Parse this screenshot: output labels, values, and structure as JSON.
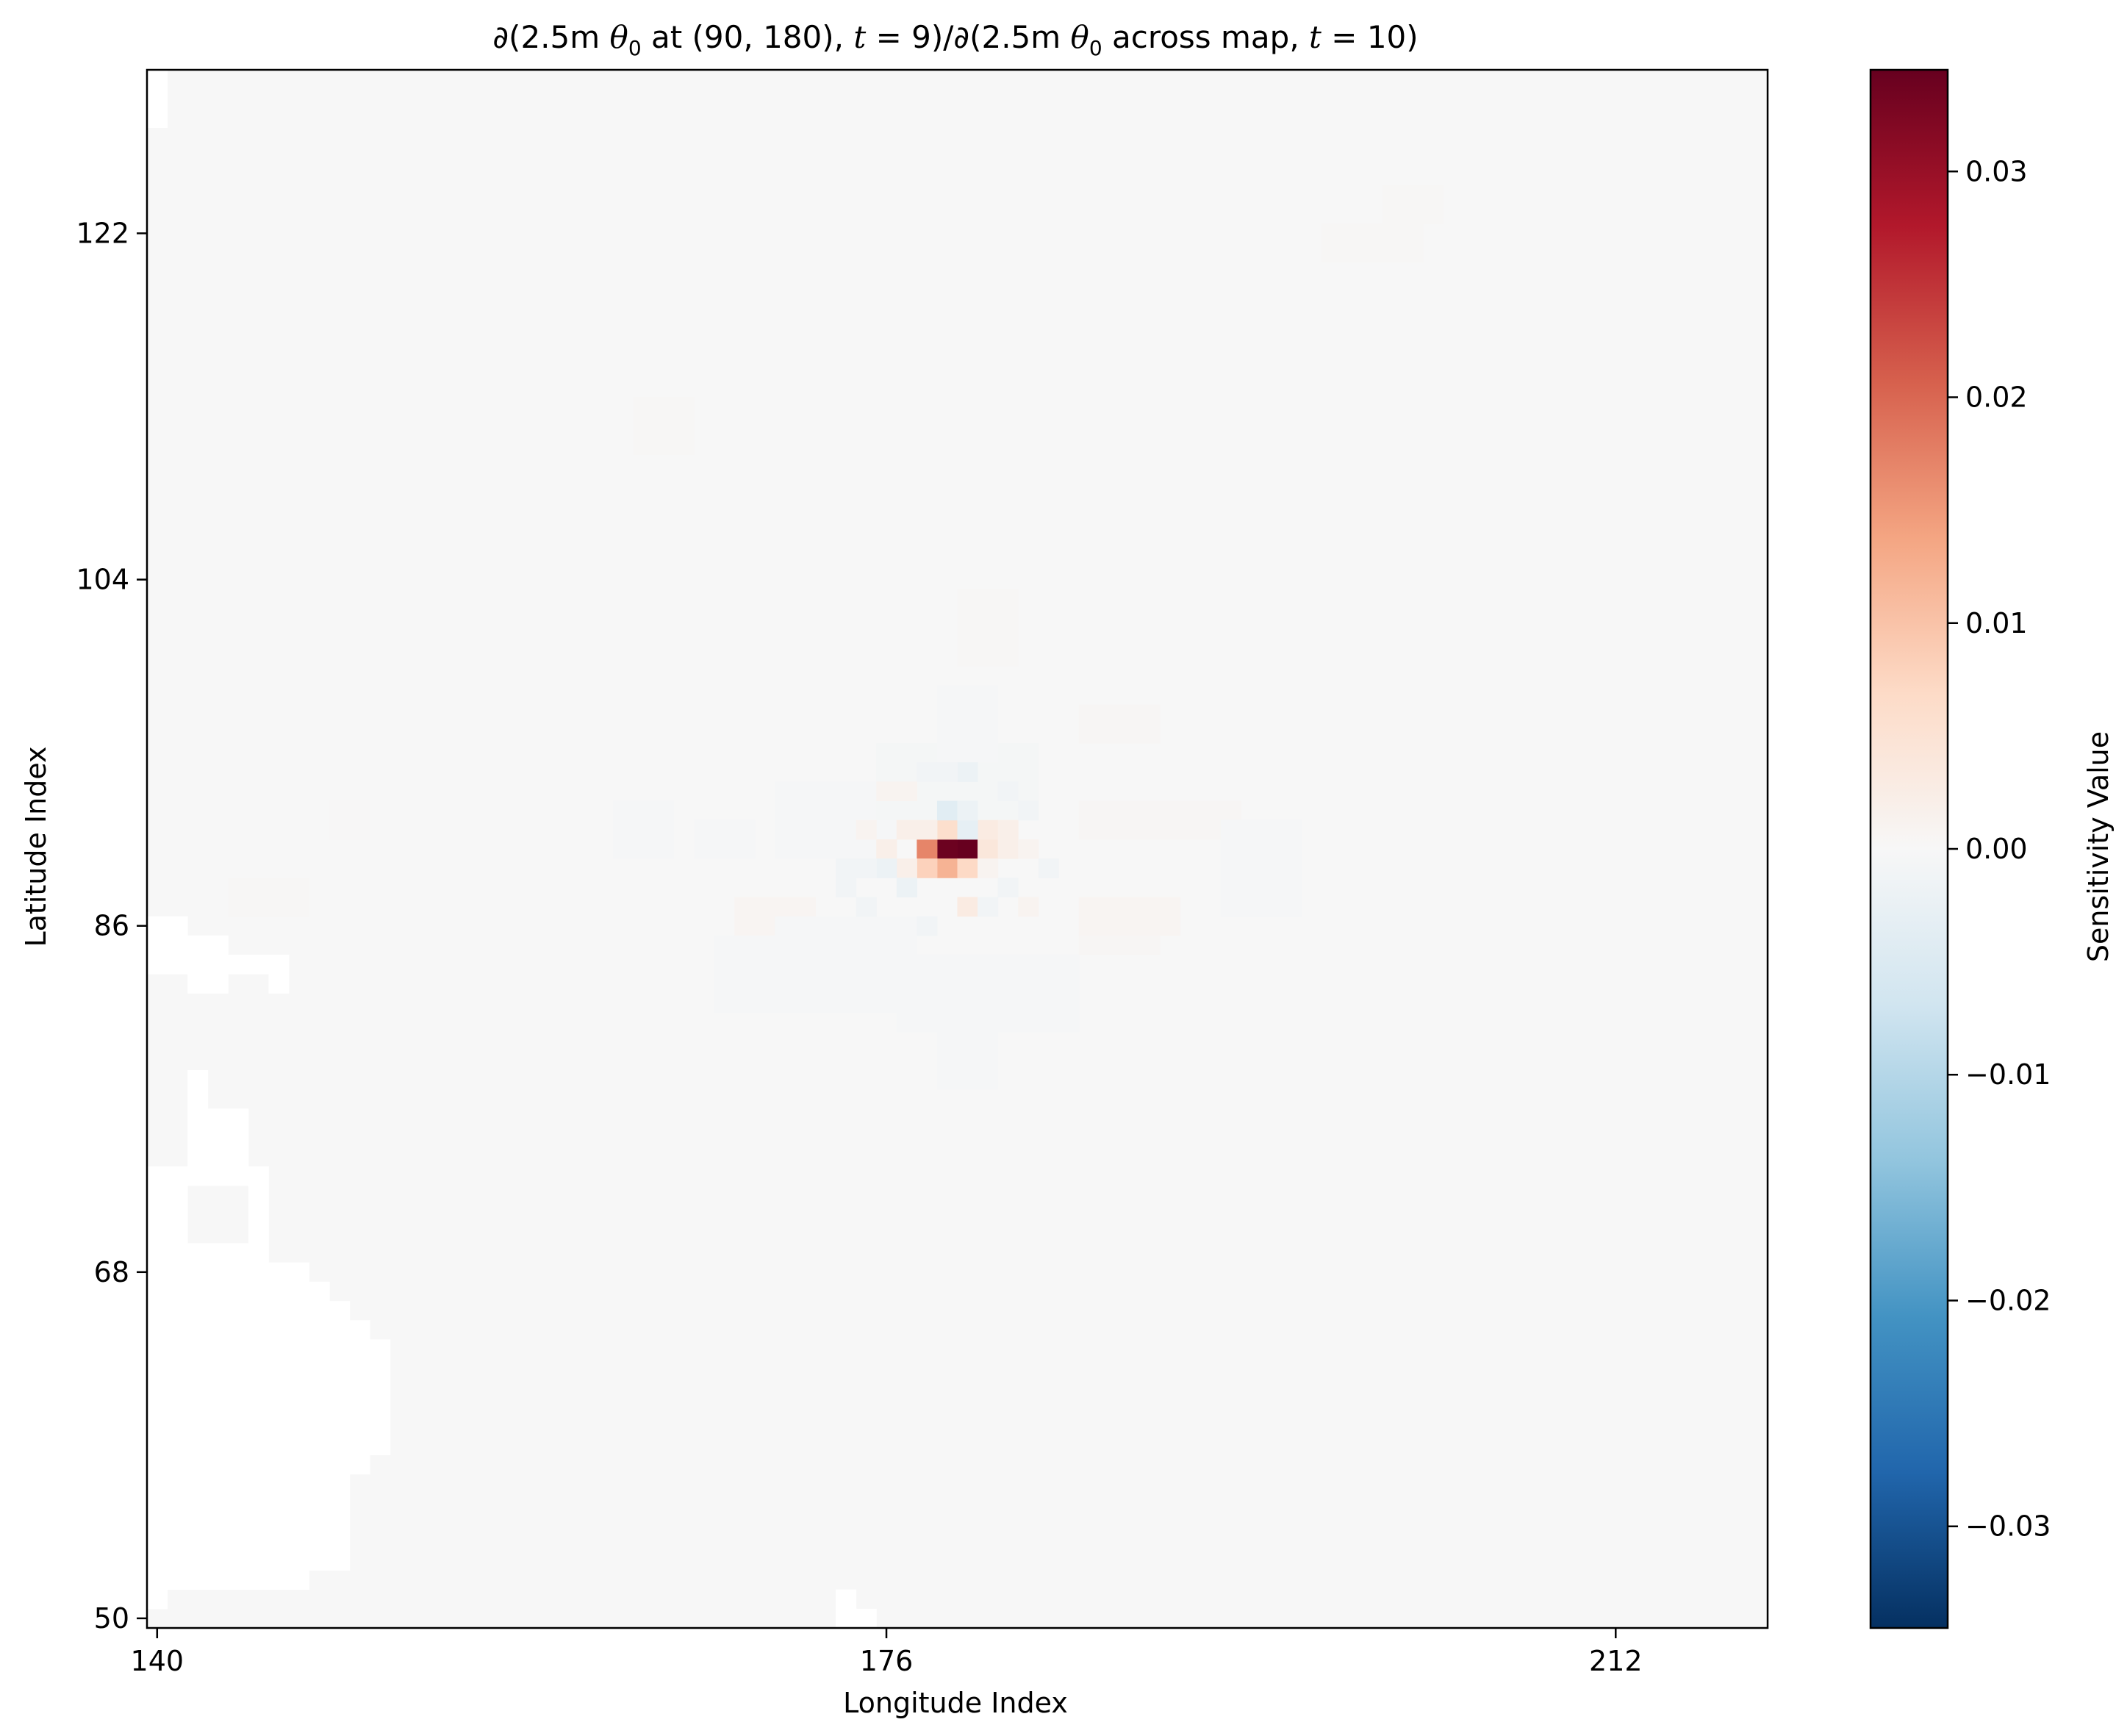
{
  "chart_data": {
    "type": "heatmap",
    "title": {
      "part1": "∂(2.5m ",
      "sym1": "θ",
      "sub1": "0",
      "part2": " at (90, 180), ",
      "t1var": "t",
      "t1eq": " = 9)/∂(2.5m ",
      "sym2": "θ",
      "sub2": "0",
      "part3": " across map, ",
      "t2var": "t",
      "t2eq": " = 10)"
    },
    "xlabel": "Longitude Index",
    "ylabel": "Latitude Index",
    "colorbar_label": "Sensitivity Value",
    "colormap": "RdBu_r",
    "xlim": [
      139.5,
      219.5
    ],
    "ylim": [
      49.5,
      130.5
    ],
    "vmin": -0.0345,
    "vmax": 0.0345,
    "xticks": [
      140,
      176,
      212
    ],
    "xtick_labels": [
      "140",
      "176",
      "212"
    ],
    "yticks": [
      50,
      68,
      86,
      104,
      122
    ],
    "ytick_labels": [
      "50",
      "68",
      "86",
      "104",
      "122"
    ],
    "cbar_ticks": [
      -0.03,
      -0.02,
      -0.01,
      0.0,
      0.01,
      0.02,
      0.03
    ],
    "cbar_tick_labels": [
      "−0.03",
      "−0.02",
      "−0.01",
      "0.00",
      "0.01",
      "0.02",
      "0.03"
    ],
    "background_value": 0.0,
    "grid": false,
    "nonzero_cells": [
      {
        "lon": 180,
        "lat": 90,
        "value": 0.0345
      },
      {
        "lon": 179,
        "lat": 90,
        "value": 0.034
      },
      {
        "lon": 178,
        "lat": 90,
        "value": 0.017
      },
      {
        "lon": 179,
        "lat": 89,
        "value": 0.012
      },
      {
        "lon": 178,
        "lat": 89,
        "value": 0.008
      },
      {
        "lon": 180,
        "lat": 89,
        "value": 0.007
      },
      {
        "lon": 179,
        "lat": 91,
        "value": 0.006
      },
      {
        "lon": 181,
        "lat": 90,
        "value": 0.004
      },
      {
        "lon": 177,
        "lat": 89,
        "value": 0.002
      },
      {
        "lon": 181,
        "lat": 91,
        "value": 0.003
      },
      {
        "lon": 182,
        "lat": 91,
        "value": 0.002
      },
      {
        "lon": 182,
        "lat": 90,
        "value": 0.002
      },
      {
        "lon": 177,
        "lat": 91,
        "value": 0.002
      },
      {
        "lon": 178,
        "lat": 91,
        "value": 0.002
      },
      {
        "lon": 176,
        "lat": 90,
        "value": 0.002
      },
      {
        "lon": 181,
        "lat": 89,
        "value": 0.001
      },
      {
        "lon": 180,
        "lat": 87,
        "value": 0.003
      },
      {
        "lon": 183,
        "lat": 90,
        "value": 0.001
      },
      {
        "lon": 183,
        "lat": 87,
        "value": 0.001
      },
      {
        "lon": 176,
        "lat": 93,
        "value": 0.001
      },
      {
        "lon": 177,
        "lat": 93,
        "value": 0.001
      },
      {
        "lon": 175,
        "lat": 91,
        "value": 0.001
      },
      {
        "lon": 179,
        "lat": 92,
        "value": -0.004
      },
      {
        "lon": 180,
        "lat": 91,
        "value": -0.003
      },
      {
        "lon": 180,
        "lat": 92,
        "value": -0.002
      },
      {
        "lon": 176,
        "lat": 89,
        "value": -0.002
      },
      {
        "lon": 175,
        "lat": 89,
        "value": -0.001
      },
      {
        "lon": 174,
        "lat": 89,
        "value": -0.001
      },
      {
        "lon": 174,
        "lat": 88,
        "value": -0.001
      },
      {
        "lon": 177,
        "lat": 88,
        "value": -0.002
      },
      {
        "lon": 180,
        "lat": 94,
        "value": -0.002
      },
      {
        "lon": 178,
        "lat": 94,
        "value": -0.001
      },
      {
        "lon": 179,
        "lat": 94,
        "value": -0.001
      },
      {
        "lon": 182,
        "lat": 93,
        "value": -0.001
      },
      {
        "lon": 183,
        "lat": 92,
        "value": -0.001
      },
      {
        "lon": 182,
        "lat": 88,
        "value": -0.001
      },
      {
        "lon": 175,
        "lat": 87,
        "value": -0.001
      },
      {
        "lon": 178,
        "lat": 86,
        "value": -0.001
      },
      {
        "lon": 184,
        "lat": 89,
        "value": -0.001
      },
      {
        "lon": 181,
        "lat": 87,
        "value": -0.001
      }
    ],
    "faint_regions": [
      {
        "lon_from": 169,
        "lon_to": 172,
        "lat_from": 86,
        "lat_to": 87,
        "value": 0.0007
      },
      {
        "lon_from": 186,
        "lon_to": 190,
        "lat_from": 86,
        "lat_to": 87,
        "value": 0.0007
      },
      {
        "lon_from": 186,
        "lon_to": 189,
        "lat_from": 85,
        "lat_to": 85,
        "value": 0.0005
      },
      {
        "lon_from": 186,
        "lon_to": 190,
        "lat_from": 91,
        "lat_to": 92,
        "value": 0.0005
      },
      {
        "lon_from": 190,
        "lon_to": 193,
        "lat_from": 91,
        "lat_to": 92,
        "value": 0.0004
      },
      {
        "lon_from": 186,
        "lon_to": 189,
        "lat_from": 96,
        "lat_to": 97,
        "value": 0.0004
      },
      {
        "lon_from": 168,
        "lon_to": 171,
        "lat_from": 82,
        "lat_to": 85,
        "value": -0.0004
      },
      {
        "lon_from": 171,
        "lon_to": 177,
        "lat_from": 82,
        "lat_to": 86,
        "value": -0.0004
      },
      {
        "lon_from": 177,
        "lon_to": 185,
        "lat_from": 81,
        "lat_to": 84,
        "value": -0.0004
      },
      {
        "lon_from": 171,
        "lon_to": 176,
        "lat_from": 90,
        "lat_to": 93,
        "value": -0.0004
      },
      {
        "lon_from": 163,
        "lon_to": 165,
        "lat_from": 90,
        "lat_to": 92,
        "value": -0.0004
      },
      {
        "lon_from": 167,
        "lon_to": 169,
        "lat_from": 90,
        "lat_to": 91,
        "value": -0.0003
      },
      {
        "lon_from": 193,
        "lon_to": 196,
        "lat_from": 87,
        "lat_to": 91,
        "value": -0.0004
      },
      {
        "lon_from": 176,
        "lon_to": 183,
        "lat_from": 92,
        "lat_to": 95,
        "value": -0.0005
      },
      {
        "lon_from": 179,
        "lon_to": 181,
        "lat_from": 78,
        "lat_to": 80,
        "value": -0.0004
      },
      {
        "lon_from": 179,
        "lon_to": 181,
        "lat_from": 95,
        "lat_to": 98,
        "value": -0.0003
      },
      {
        "lon_from": 180,
        "lon_to": 182,
        "lat_from": 100,
        "lat_to": 103,
        "value": 0.0003
      },
      {
        "lon_from": 164,
        "lon_to": 166,
        "lat_from": 111,
        "lat_to": 113,
        "value": 0.0003
      },
      {
        "lon_from": 201,
        "lon_to": 203,
        "lat_from": 123,
        "lat_to": 124,
        "value": 0.0003
      },
      {
        "lon_from": 198,
        "lon_to": 202,
        "lat_from": 121,
        "lat_to": 122,
        "value": 0.0003
      },
      {
        "lon_from": 144,
        "lon_to": 147,
        "lat_from": 87,
        "lat_to": 88,
        "value": 0.0003
      },
      {
        "lon_from": 149,
        "lon_to": 150,
        "lat_from": 91,
        "lat_to": 92,
        "value": 0.0002
      }
    ],
    "masked_regions": [
      {
        "lon_from": 140,
        "lon_to": 140,
        "lat_from": 128,
        "lat_to": 130
      },
      {
        "lon_from": 140,
        "lon_to": 141,
        "lat_from": 84,
        "lat_to": 86
      },
      {
        "lon_from": 142,
        "lon_to": 143,
        "lat_from": 83,
        "lat_to": 85
      },
      {
        "lon_from": 144,
        "lon_to": 145,
        "lat_from": 84,
        "lat_to": 84
      },
      {
        "lon_from": 146,
        "lon_to": 146,
        "lat_from": 83,
        "lat_to": 84
      },
      {
        "lon_from": 140,
        "lon_to": 141,
        "lat_from": 69,
        "lat_to": 73
      },
      {
        "lon_from": 142,
        "lon_to": 142,
        "lat_from": 73,
        "lat_to": 78
      },
      {
        "lon_from": 143,
        "lon_to": 144,
        "lat_from": 73,
        "lat_to": 76
      },
      {
        "lon_from": 145,
        "lon_to": 145,
        "lat_from": 70,
        "lat_to": 73
      },
      {
        "lon_from": 140,
        "lon_to": 145,
        "lat_from": 53,
        "lat_to": 69
      },
      {
        "lon_from": 146,
        "lon_to": 147,
        "lat_from": 53,
        "lat_to": 68
      },
      {
        "lon_from": 148,
        "lon_to": 148,
        "lat_from": 53,
        "lat_to": 67
      },
      {
        "lon_from": 149,
        "lon_to": 149,
        "lat_from": 54,
        "lat_to": 66
      },
      {
        "lon_from": 150,
        "lon_to": 150,
        "lat_from": 58,
        "lat_to": 65
      },
      {
        "lon_from": 151,
        "lon_to": 151,
        "lat_from": 59,
        "lat_to": 64
      },
      {
        "lon_from": 140,
        "lon_to": 140,
        "lat_from": 51,
        "lat_to": 52
      },
      {
        "lon_from": 141,
        "lon_to": 147,
        "lat_from": 52,
        "lat_to": 52
      },
      {
        "lon_from": 148,
        "lon_to": 149,
        "lat_from": 53,
        "lat_to": 53
      },
      {
        "lon_from": 174,
        "lon_to": 174,
        "lat_from": 50,
        "lat_to": 51
      },
      {
        "lon_from": 175,
        "lon_to": 175,
        "lat_from": 50,
        "lat_to": 50
      }
    ]
  }
}
